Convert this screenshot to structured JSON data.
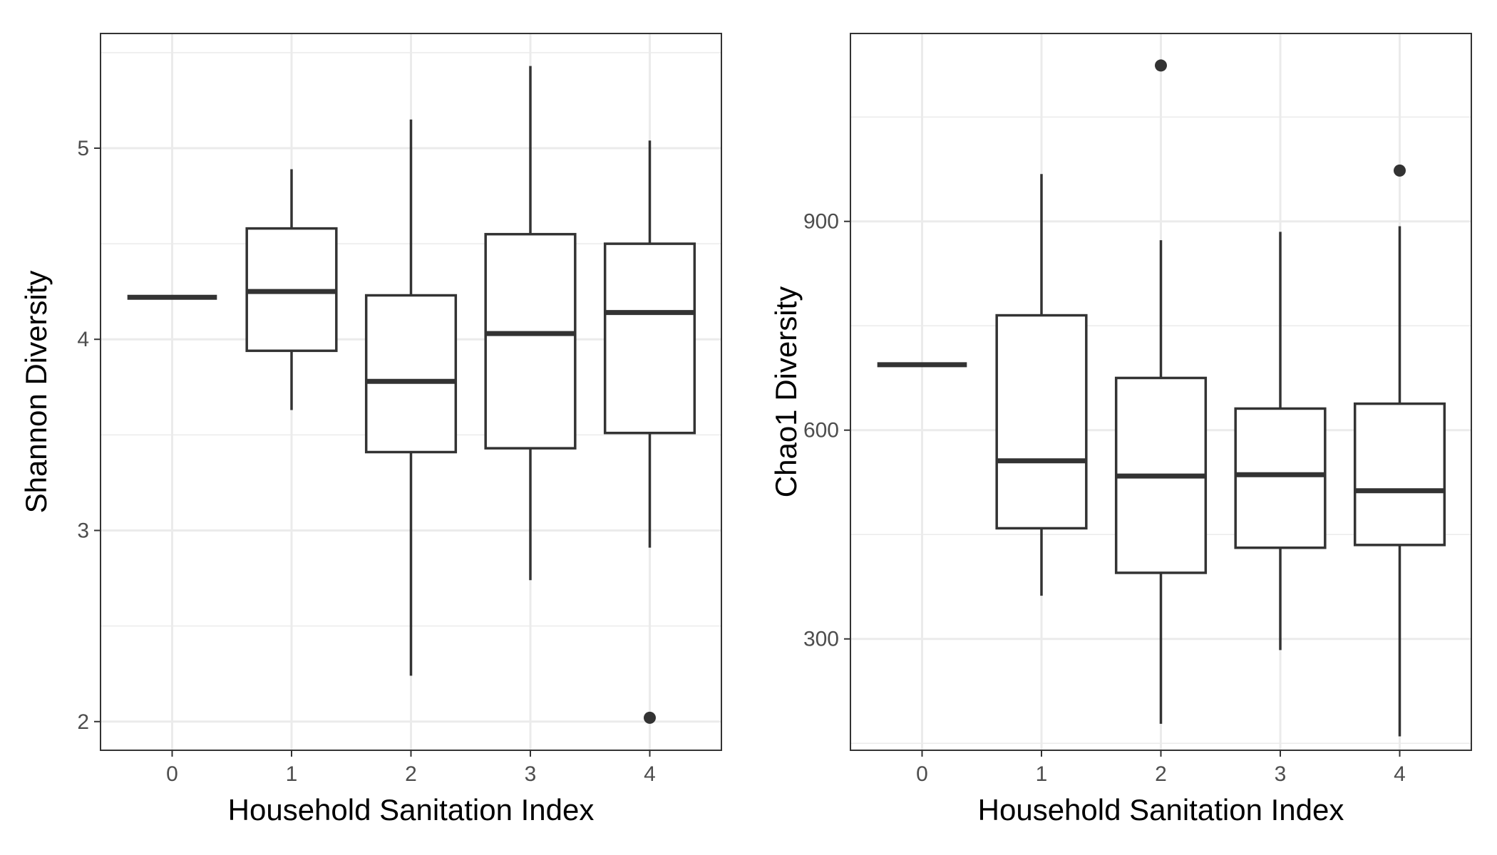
{
  "chart_data": [
    {
      "type": "boxplot",
      "xlabel": "Household Sanitation Index",
      "ylabel": "Shannon Diversity",
      "ylim": [
        1.85,
        5.6
      ],
      "y_ticks": [
        2,
        3,
        4,
        5
      ],
      "y_minor_ticks": [
        2.5,
        3.5,
        4.5,
        5.5
      ],
      "grid": true,
      "categories": [
        "0",
        "1",
        "2",
        "3",
        "4"
      ],
      "boxes": [
        {
          "category": "0",
          "min": 4.22,
          "q1": 4.22,
          "median": 4.22,
          "q3": 4.22,
          "max": 4.22,
          "outliers": []
        },
        {
          "category": "1",
          "min": 3.63,
          "q1": 3.94,
          "median": 4.25,
          "q3": 4.58,
          "max": 4.89,
          "outliers": []
        },
        {
          "category": "2",
          "min": 2.24,
          "q1": 3.41,
          "median": 3.78,
          "q3": 4.23,
          "max": 5.15,
          "outliers": []
        },
        {
          "category": "3",
          "min": 2.74,
          "q1": 3.43,
          "median": 4.03,
          "q3": 4.55,
          "max": 5.43,
          "outliers": []
        },
        {
          "category": "4",
          "min": 2.91,
          "q1": 3.51,
          "median": 4.14,
          "q3": 4.5,
          "max": 5.04,
          "outliers": [
            2.02
          ]
        }
      ]
    },
    {
      "type": "boxplot",
      "xlabel": "Household Sanitation Index",
      "ylabel": "Chao1 Diversity",
      "ylim": [
        140,
        1170
      ],
      "y_ticks": [
        300,
        600,
        900
      ],
      "y_minor_ticks": [
        150,
        450,
        750,
        1050
      ],
      "grid": true,
      "categories": [
        "0",
        "1",
        "2",
        "3",
        "4"
      ],
      "boxes": [
        {
          "category": "0",
          "min": 694,
          "q1": 694,
          "median": 694,
          "q3": 694,
          "max": 694,
          "outliers": []
        },
        {
          "category": "1",
          "min": 362,
          "q1": 459,
          "median": 556,
          "q3": 765,
          "max": 968,
          "outliers": []
        },
        {
          "category": "2",
          "min": 178,
          "q1": 395,
          "median": 534,
          "q3": 675,
          "max": 873,
          "outliers": [
            1124
          ]
        },
        {
          "category": "3",
          "min": 284,
          "q1": 431,
          "median": 536,
          "q3": 631,
          "max": 885,
          "outliers": []
        },
        {
          "category": "4",
          "min": 160,
          "q1": 435,
          "median": 513,
          "q3": 638,
          "max": 893,
          "outliers": [
            973
          ]
        }
      ]
    }
  ]
}
